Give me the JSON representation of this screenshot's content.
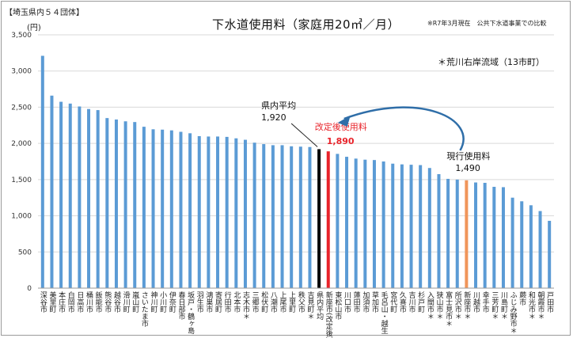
{
  "header": {
    "tag": "【埼玉県内５４団体】",
    "unit": "(円)",
    "title": "下水道使用料（家庭用20㎥／月）",
    "source": "※R7年3月現在　公共下水道事業での比較",
    "legend_note": "＊荒川右岸流域（13市町）"
  },
  "chart_data": {
    "type": "bar",
    "title": "下水道使用料（家庭用20㎥／月）",
    "ylabel": "(円)",
    "ylim": [
      0,
      3500
    ],
    "yticks": [
      "0",
      "500",
      "1,000",
      "1,500",
      "2,000",
      "2,500",
      "3,000",
      "3,500"
    ],
    "grid": true,
    "categories": [
      "深谷市",
      "美里町",
      "本庄市",
      "白岡市",
      "日高市",
      "桶川市",
      "飯能市",
      "熊谷市",
      "越谷市",
      "滑川町",
      "嵐山町",
      "さいたま市",
      "神川町",
      "小川町",
      "伊奈町",
      "春日部市",
      "坂戸・鶴ヶ島",
      "羽生市",
      "鴻巣市",
      "寄居町",
      "行田市",
      "北本市",
      "志木市＊",
      "三郷市",
      "松伏町",
      "八潮市",
      "上尾市",
      "上里町",
      "秩父市",
      "吉見町＊",
      "県内平均",
      "新座市(改定後)",
      "東松山市",
      "川口市",
      "蓮田市",
      "加須市",
      "草加市",
      "毛呂山・越生",
      "宮代町",
      "久喜市",
      "吉川市",
      "杉戸町",
      "入間市＊",
      "狭山市＊",
      "富士見市＊",
      "所沢市＊",
      "新座市＊",
      "川越市",
      "幸手市",
      "三芳町＊",
      "川島町＊",
      "ふじみ野市＊",
      "蕨市",
      "和光市＊",
      "朝霞市＊",
      "戸田市"
    ],
    "values": [
      3210,
      2660,
      2575,
      2550,
      2510,
      2475,
      2460,
      2350,
      2330,
      2305,
      2295,
      2230,
      2195,
      2190,
      2180,
      2160,
      2140,
      2100,
      2095,
      2095,
      2090,
      2070,
      2050,
      2010,
      1990,
      1975,
      1975,
      1960,
      1955,
      1950,
      1920,
      1890,
      1855,
      1815,
      1790,
      1775,
      1770,
      1750,
      1720,
      1710,
      1705,
      1700,
      1660,
      1575,
      1510,
      1500,
      1490,
      1460,
      1455,
      1400,
      1395,
      1250,
      1200,
      1145,
      1065,
      930
    ],
    "highlights": {
      "県内平均": "#000000",
      "新座市(改定後)": "#e8232a",
      "新座市＊": "#f0955a"
    },
    "bar_color": "#5b9bd5",
    "annotations": [
      {
        "text": "県内平均",
        "value_label": "1,920"
      },
      {
        "text": "改定後使用料",
        "value_label": "1,890"
      },
      {
        "text": "現行使用料",
        "value_label": "1,490"
      }
    ]
  }
}
